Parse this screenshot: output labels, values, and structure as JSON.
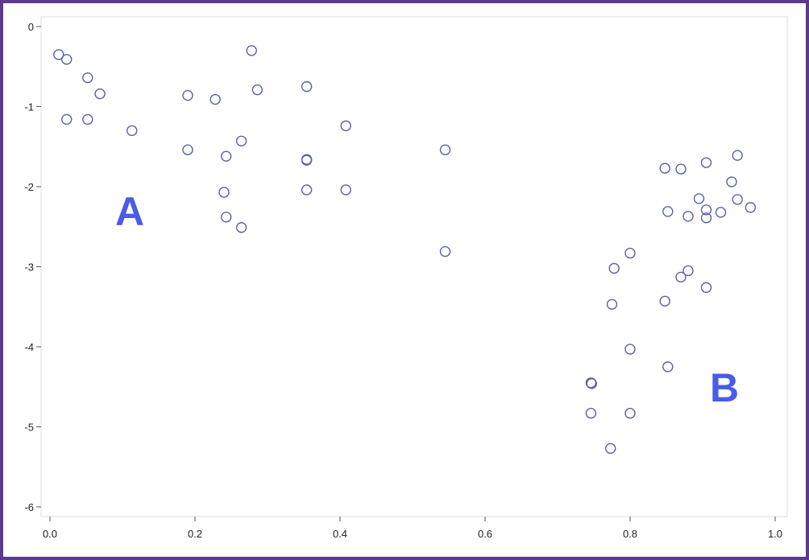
{
  "chart_data": {
    "type": "scatter",
    "title": "",
    "xlabel": "",
    "ylabel": "",
    "xlim": [
      0.0,
      1.0
    ],
    "ylim": [
      -6,
      0
    ],
    "grid": false,
    "x_ticks": [
      0.0,
      0.2,
      0.4,
      0.6,
      0.8,
      1.0
    ],
    "x_tick_labels": [
      "0.0",
      "0.2",
      "0.4",
      "0.6",
      "0.8",
      "1.0"
    ],
    "y_ticks": [
      0,
      -1,
      -2,
      -3,
      -4,
      -5,
      -6
    ],
    "y_tick_labels": [
      "0",
      "-1",
      "-2",
      "-3",
      "-4",
      "-5",
      "-6"
    ],
    "marker": "open-circle",
    "marker_color": "#5a62a8",
    "annotation_color": "#4a5be8",
    "annotations": [
      {
        "text": "A",
        "x": 0.11,
        "y": -2.3
      },
      {
        "text": "B",
        "x": 0.93,
        "y": -4.5
      }
    ],
    "points": [
      {
        "x": 0.012,
        "y": -0.35
      },
      {
        "x": 0.023,
        "y": -0.41
      },
      {
        "x": 0.052,
        "y": -0.64
      },
      {
        "x": 0.069,
        "y": -0.84
      },
      {
        "x": 0.023,
        "y": -1.16
      },
      {
        "x": 0.052,
        "y": -1.16
      },
      {
        "x": 0.113,
        "y": -1.3
      },
      {
        "x": 0.19,
        "y": -0.86
      },
      {
        "x": 0.228,
        "y": -0.91
      },
      {
        "x": 0.278,
        "y": -0.3
      },
      {
        "x": 0.286,
        "y": -0.79
      },
      {
        "x": 0.354,
        "y": -0.75
      },
      {
        "x": 0.19,
        "y": -1.54
      },
      {
        "x": 0.264,
        "y": -1.43
      },
      {
        "x": 0.243,
        "y": -1.62
      },
      {
        "x": 0.354,
        "y": -1.66
      },
      {
        "x": 0.354,
        "y": -1.67
      },
      {
        "x": 0.408,
        "y": -1.24
      },
      {
        "x": 0.24,
        "y": -2.07
      },
      {
        "x": 0.354,
        "y": -2.04
      },
      {
        "x": 0.408,
        "y": -2.04
      },
      {
        "x": 0.243,
        "y": -2.38
      },
      {
        "x": 0.264,
        "y": -2.51
      },
      {
        "x": 0.545,
        "y": -1.54
      },
      {
        "x": 0.545,
        "y": -2.81
      },
      {
        "x": 0.848,
        "y": -1.77
      },
      {
        "x": 0.87,
        "y": -1.78
      },
      {
        "x": 0.905,
        "y": -1.7
      },
      {
        "x": 0.948,
        "y": -1.61
      },
      {
        "x": 0.94,
        "y": -1.94
      },
      {
        "x": 0.895,
        "y": -2.15
      },
      {
        "x": 0.948,
        "y": -2.16
      },
      {
        "x": 0.852,
        "y": -2.31
      },
      {
        "x": 0.88,
        "y": -2.37
      },
      {
        "x": 0.905,
        "y": -2.29
      },
      {
        "x": 0.905,
        "y": -2.39
      },
      {
        "x": 0.925,
        "y": -2.32
      },
      {
        "x": 0.966,
        "y": -2.26
      },
      {
        "x": 0.8,
        "y": -2.83
      },
      {
        "x": 0.778,
        "y": -3.02
      },
      {
        "x": 0.88,
        "y": -3.05
      },
      {
        "x": 0.87,
        "y": -3.13
      },
      {
        "x": 0.905,
        "y": -3.26
      },
      {
        "x": 0.775,
        "y": -3.47
      },
      {
        "x": 0.848,
        "y": -3.43
      },
      {
        "x": 0.8,
        "y": -4.03
      },
      {
        "x": 0.852,
        "y": -4.25
      },
      {
        "x": 0.746,
        "y": -4.45
      },
      {
        "x": 0.747,
        "y": -4.46
      },
      {
        "x": 0.746,
        "y": -4.83
      },
      {
        "x": 0.8,
        "y": -4.83
      },
      {
        "x": 0.773,
        "y": -5.27
      }
    ]
  }
}
